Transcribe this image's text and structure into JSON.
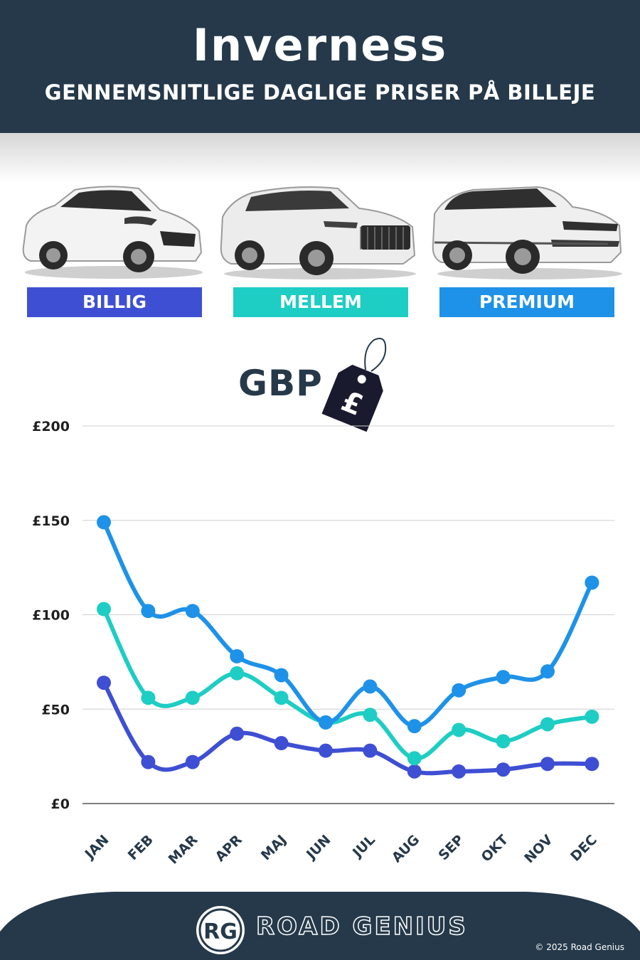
{
  "header": {
    "title": "Inverness",
    "subtitle": "GENNEMSNITLIGE DAGLIGE PRISER PÅ BILLEJE"
  },
  "categories": [
    {
      "label": "BILLIG",
      "color": "#3f4fd3"
    },
    {
      "label": "MELLEM",
      "color": "#1ecdc4"
    },
    {
      "label": "PREMIUM",
      "color": "#1e92e8"
    }
  ],
  "currency": {
    "label": "GBP",
    "symbol": "£"
  },
  "chart_data": {
    "type": "line",
    "categories": [
      "JAN",
      "FEB",
      "MAR",
      "APR",
      "MAJ",
      "JUN",
      "JUL",
      "AUG",
      "SEP",
      "OKT",
      "NOV",
      "DEC"
    ],
    "series": [
      {
        "name": "BILLIG",
        "color": "#3f4fd3",
        "values": [
          64,
          22,
          22,
          37,
          32,
          28,
          28,
          17,
          17,
          18,
          21,
          21
        ]
      },
      {
        "name": "MELLEM",
        "color": "#1ecdc4",
        "values": [
          103,
          56,
          56,
          69,
          56,
          43,
          47,
          24,
          39,
          33,
          42,
          46
        ]
      },
      {
        "name": "PREMIUM",
        "color": "#1e92e8",
        "values": [
          149,
          102,
          102,
          78,
          68,
          43,
          62,
          41,
          60,
          67,
          70,
          117
        ]
      }
    ],
    "yticks": [
      "£0",
      "£50",
      "£100",
      "£150",
      "£200"
    ],
    "ylim": [
      0,
      200
    ],
    "grid": true
  },
  "footer": {
    "logo_text": "RG",
    "brand": "ROAD GENIUS",
    "copyright": "© 2025 Road Genius"
  }
}
